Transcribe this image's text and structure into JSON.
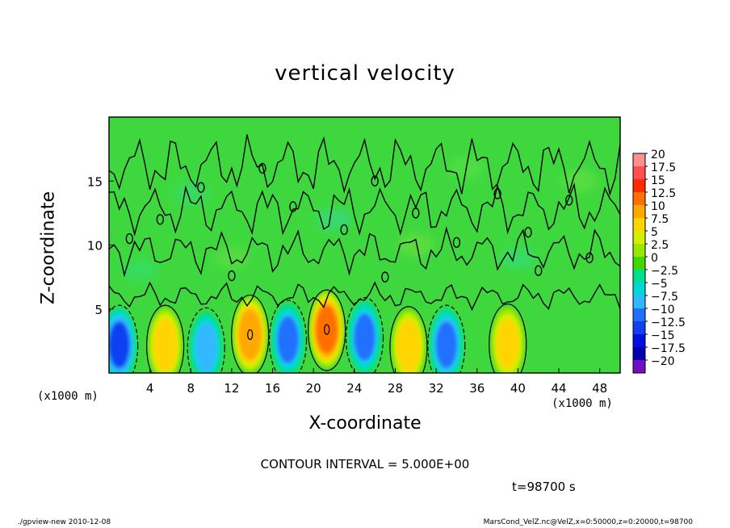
{
  "chart_data": {
    "type": "heatmap",
    "title": "vertical velocity",
    "xlabel": "X-coordinate",
    "ylabel": "Z-coordinate",
    "x_units_left": "(x1000 m)",
    "x_units_right": "(x1000 m)",
    "xlim": [
      0,
      50
    ],
    "ylim": [
      0,
      20
    ],
    "x_ticks": [
      4,
      8,
      12,
      16,
      20,
      24,
      28,
      32,
      36,
      40,
      44,
      48
    ],
    "y_ticks": [
      5,
      10,
      15
    ],
    "colorbar": {
      "levels": [
        20,
        17.5,
        15,
        12.5,
        10,
        7.5,
        5,
        2.5,
        0,
        -2.5,
        -5,
        -7.5,
        -10,
        -12.5,
        -15,
        -17.5,
        -20
      ],
      "labels": [
        "20",
        "17.5",
        "15",
        "12.5",
        "10",
        "7.5",
        "5",
        "2.5",
        "0",
        "−2.5",
        "−5",
        "−7.5",
        "−10",
        "−12.5",
        "−15",
        "−17.5",
        "−20"
      ],
      "colors": [
        "#ff9090",
        "#ff5050",
        "#ff2a00",
        "#ff7000",
        "#ffa800",
        "#ffd400",
        "#d2f000",
        "#98e800",
        "#40d800",
        "#00e090",
        "#00d8d8",
        "#30b8ff",
        "#2070ff",
        "#1040f0",
        "#0010e0",
        "#0000b0",
        "#7010c0"
      ]
    },
    "background_color": "#3ed83e",
    "features": [
      {
        "kind": "updraft",
        "x": 5.5,
        "z": 2.2,
        "peak": 9
      },
      {
        "kind": "downdraft",
        "x": 9.5,
        "z": 2.0,
        "peak": -7
      },
      {
        "kind": "updraft",
        "x": 13.8,
        "z": 3.0,
        "peak": 12
      },
      {
        "kind": "downdraft",
        "x": 17.5,
        "z": 2.6,
        "peak": -8
      },
      {
        "kind": "updraft",
        "x": 21.3,
        "z": 3.4,
        "peak": 14
      },
      {
        "kind": "downdraft",
        "x": 25.0,
        "z": 2.8,
        "peak": -8
      },
      {
        "kind": "updraft",
        "x": 29.3,
        "z": 2.1,
        "peak": 9
      },
      {
        "kind": "downdraft",
        "x": 33.0,
        "z": 2.2,
        "peak": -9
      },
      {
        "kind": "updraft",
        "x": 39.0,
        "z": 2.3,
        "peak": 8
      },
      {
        "kind": "downdraft",
        "x": 1.0,
        "z": 2.2,
        "peak": -11
      }
    ],
    "contour_interval_text": "CONTOUR INTERVAL = 5.000E+00",
    "time_text": "t=98700 s"
  },
  "footer": {
    "left": "./gpview-new  2010-12-08",
    "right": "MarsCond_VelZ.nc@VelZ,x=0:50000,z=0:20000,t=98700"
  }
}
